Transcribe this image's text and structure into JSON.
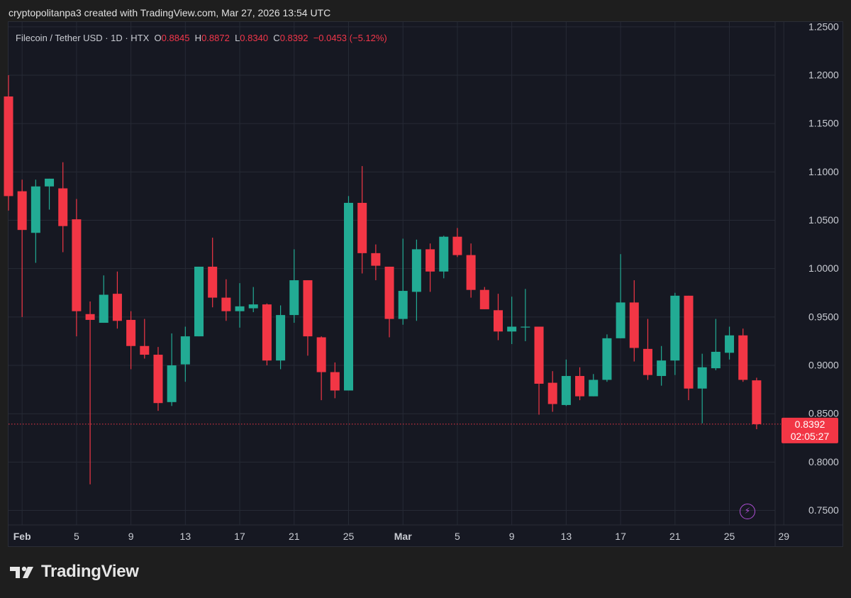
{
  "attribution": "cryptopolitanpa3 created with TradingView.com, Mar 27, 2026 13:54 UTC",
  "symbol": {
    "name": "Filecoin / Tether USD · 1D · HTX",
    "o_label": "O",
    "o": "0.8845",
    "h_label": "H",
    "h": "0.8872",
    "l_label": "L",
    "l": "0.8340",
    "c_label": "C",
    "c": "0.8392",
    "change": "−0.0453 (−5.12%)"
  },
  "price_label": {
    "price": "0.8392",
    "countdown": "02:05:27"
  },
  "logo_text": "TradingView",
  "icons": {
    "logo": "tradingview-logo-icon",
    "bolt": "lightning-icon"
  },
  "colors": {
    "up": "#22ab94",
    "down": "#f23645",
    "background": "#161822",
    "grid": "#262a35",
    "text": "#c9ccd3"
  },
  "chart_data": {
    "type": "candlestick",
    "title": "Filecoin / Tether USD · 1D · HTX",
    "y_axis": {
      "min": 0.735,
      "max": 1.255,
      "position": "right",
      "ticks": [
        "1.2500",
        "1.2000",
        "1.1500",
        "1.1000",
        "1.0500",
        "1.0000",
        "0.9500",
        "0.9000",
        "0.8500",
        "0.8000",
        "0.7500"
      ]
    },
    "x_axis": {
      "ticks": [
        {
          "label": "Feb",
          "index": 1
        },
        {
          "label": "5",
          "index": 5
        },
        {
          "label": "9",
          "index": 9
        },
        {
          "label": "13",
          "index": 13
        },
        {
          "label": "17",
          "index": 17
        },
        {
          "label": "21",
          "index": 21
        },
        {
          "label": "25",
          "index": 25
        },
        {
          "label": "Mar",
          "index": 29
        },
        {
          "label": "5",
          "index": 33
        },
        {
          "label": "9",
          "index": 37
        },
        {
          "label": "13",
          "index": 41
        },
        {
          "label": "17",
          "index": 45
        },
        {
          "label": "21",
          "index": 49
        },
        {
          "label": "25",
          "index": 53
        },
        {
          "label": "29",
          "index": 57
        }
      ]
    },
    "candles": [
      {
        "date": "Jan 31",
        "o": 1.178,
        "h": 1.2,
        "l": 1.06,
        "c": 1.075
      },
      {
        "date": "Feb 1",
        "o": 1.08,
        "h": 1.092,
        "l": 0.95,
        "c": 1.04
      },
      {
        "date": "Feb 2",
        "o": 1.037,
        "h": 1.092,
        "l": 1.006,
        "c": 1.085
      },
      {
        "date": "Feb 3",
        "o": 1.085,
        "h": 1.093,
        "l": 1.061,
        "c": 1.093
      },
      {
        "date": "Feb 4",
        "o": 1.083,
        "h": 1.11,
        "l": 1.017,
        "c": 1.044
      },
      {
        "date": "Feb 5",
        "o": 1.051,
        "h": 1.072,
        "l": 0.93,
        "c": 0.956
      },
      {
        "date": "Feb 6",
        "o": 0.953,
        "h": 0.966,
        "l": 0.777,
        "c": 0.947
      },
      {
        "date": "Feb 7",
        "o": 0.944,
        "h": 0.993,
        "l": 0.944,
        "c": 0.973
      },
      {
        "date": "Feb 8",
        "o": 0.974,
        "h": 0.997,
        "l": 0.938,
        "c": 0.946
      },
      {
        "date": "Feb 9",
        "o": 0.947,
        "h": 0.956,
        "l": 0.896,
        "c": 0.92
      },
      {
        "date": "Feb 10",
        "o": 0.92,
        "h": 0.948,
        "l": 0.907,
        "c": 0.911
      },
      {
        "date": "Feb 11",
        "o": 0.911,
        "h": 0.919,
        "l": 0.853,
        "c": 0.861
      },
      {
        "date": "Feb 12",
        "o": 0.862,
        "h": 0.933,
        "l": 0.858,
        "c": 0.9
      },
      {
        "date": "Feb 13",
        "o": 0.901,
        "h": 0.94,
        "l": 0.883,
        "c": 0.93
      },
      {
        "date": "Feb 14",
        "o": 0.93,
        "h": 1.002,
        "l": 0.93,
        "c": 1.002
      },
      {
        "date": "Feb 15",
        "o": 1.002,
        "h": 1.032,
        "l": 0.96,
        "c": 0.97
      },
      {
        "date": "Feb 16",
        "o": 0.97,
        "h": 0.989,
        "l": 0.946,
        "c": 0.956
      },
      {
        "date": "Feb 17",
        "o": 0.956,
        "h": 0.985,
        "l": 0.939,
        "c": 0.961
      },
      {
        "date": "Feb 18",
        "o": 0.959,
        "h": 0.981,
        "l": 0.955,
        "c": 0.963
      },
      {
        "date": "Feb 19",
        "o": 0.963,
        "h": 0.964,
        "l": 0.9,
        "c": 0.905
      },
      {
        "date": "Feb 20",
        "o": 0.905,
        "h": 0.962,
        "l": 0.896,
        "c": 0.952
      },
      {
        "date": "Feb 21",
        "o": 0.952,
        "h": 1.02,
        "l": 0.944,
        "c": 0.988
      },
      {
        "date": "Feb 22",
        "o": 0.988,
        "h": 0.988,
        "l": 0.91,
        "c": 0.93
      },
      {
        "date": "Feb 23",
        "o": 0.929,
        "h": 0.93,
        "l": 0.864,
        "c": 0.893
      },
      {
        "date": "Feb 24",
        "o": 0.893,
        "h": 0.903,
        "l": 0.866,
        "c": 0.874
      },
      {
        "date": "Feb 25",
        "o": 0.874,
        "h": 1.075,
        "l": 0.874,
        "c": 1.068
      },
      {
        "date": "Feb 26",
        "o": 1.068,
        "h": 1.106,
        "l": 0.995,
        "c": 1.016
      },
      {
        "date": "Feb 27",
        "o": 1.016,
        "h": 1.025,
        "l": 0.988,
        "c": 1.003
      },
      {
        "date": "Feb 28",
        "o": 1.002,
        "h": 1.002,
        "l": 0.929,
        "c": 0.948
      },
      {
        "date": "Mar 1",
        "o": 0.948,
        "h": 1.031,
        "l": 0.942,
        "c": 0.977
      },
      {
        "date": "Mar 2",
        "o": 0.976,
        "h": 1.03,
        "l": 0.946,
        "c": 1.02
      },
      {
        "date": "Mar 3",
        "o": 1.02,
        "h": 1.026,
        "l": 0.976,
        "c": 0.997
      },
      {
        "date": "Mar 4",
        "o": 0.997,
        "h": 1.034,
        "l": 0.99,
        "c": 1.033
      },
      {
        "date": "Mar 5",
        "o": 1.033,
        "h": 1.042,
        "l": 1.012,
        "c": 1.014
      },
      {
        "date": "Mar 6",
        "o": 1.014,
        "h": 1.026,
        "l": 0.97,
        "c": 0.978
      },
      {
        "date": "Mar 7",
        "o": 0.978,
        "h": 0.981,
        "l": 0.958,
        "c": 0.958
      },
      {
        "date": "Mar 8",
        "o": 0.957,
        "h": 0.974,
        "l": 0.926,
        "c": 0.935
      },
      {
        "date": "Mar 9",
        "o": 0.935,
        "h": 0.971,
        "l": 0.922,
        "c": 0.94
      },
      {
        "date": "Mar 10",
        "o": 0.94,
        "h": 0.979,
        "l": 0.925,
        "c": 0.94
      },
      {
        "date": "Mar 11",
        "o": 0.94,
        "h": 0.94,
        "l": 0.849,
        "c": 0.881
      },
      {
        "date": "Mar 12",
        "o": 0.882,
        "h": 0.894,
        "l": 0.852,
        "c": 0.86
      },
      {
        "date": "Mar 13",
        "o": 0.859,
        "h": 0.906,
        "l": 0.858,
        "c": 0.889
      },
      {
        "date": "Mar 14",
        "o": 0.889,
        "h": 0.898,
        "l": 0.864,
        "c": 0.868
      },
      {
        "date": "Mar 15",
        "o": 0.868,
        "h": 0.891,
        "l": 0.868,
        "c": 0.885
      },
      {
        "date": "Mar 16",
        "o": 0.885,
        "h": 0.932,
        "l": 0.883,
        "c": 0.928
      },
      {
        "date": "Mar 17",
        "o": 0.928,
        "h": 1.015,
        "l": 0.928,
        "c": 0.965
      },
      {
        "date": "Mar 18",
        "o": 0.965,
        "h": 0.988,
        "l": 0.904,
        "c": 0.918
      },
      {
        "date": "Mar 19",
        "o": 0.917,
        "h": 0.948,
        "l": 0.885,
        "c": 0.89
      },
      {
        "date": "Mar 20",
        "o": 0.889,
        "h": 0.92,
        "l": 0.879,
        "c": 0.905
      },
      {
        "date": "Mar 21",
        "o": 0.905,
        "h": 0.975,
        "l": 0.89,
        "c": 0.972
      },
      {
        "date": "Mar 22",
        "o": 0.972,
        "h": 0.972,
        "l": 0.864,
        "c": 0.876
      },
      {
        "date": "Mar 23",
        "o": 0.876,
        "h": 0.912,
        "l": 0.84,
        "c": 0.898
      },
      {
        "date": "Mar 24",
        "o": 0.897,
        "h": 0.948,
        "l": 0.895,
        "c": 0.914
      },
      {
        "date": "Mar 25",
        "o": 0.913,
        "h": 0.94,
        "l": 0.906,
        "c": 0.931
      },
      {
        "date": "Mar 26",
        "o": 0.931,
        "h": 0.938,
        "l": 0.883,
        "c": 0.885
      },
      {
        "date": "Mar 27",
        "o": 0.8845,
        "h": 0.8872,
        "l": 0.834,
        "c": 0.8392
      }
    ],
    "last_price": 0.8392
  }
}
